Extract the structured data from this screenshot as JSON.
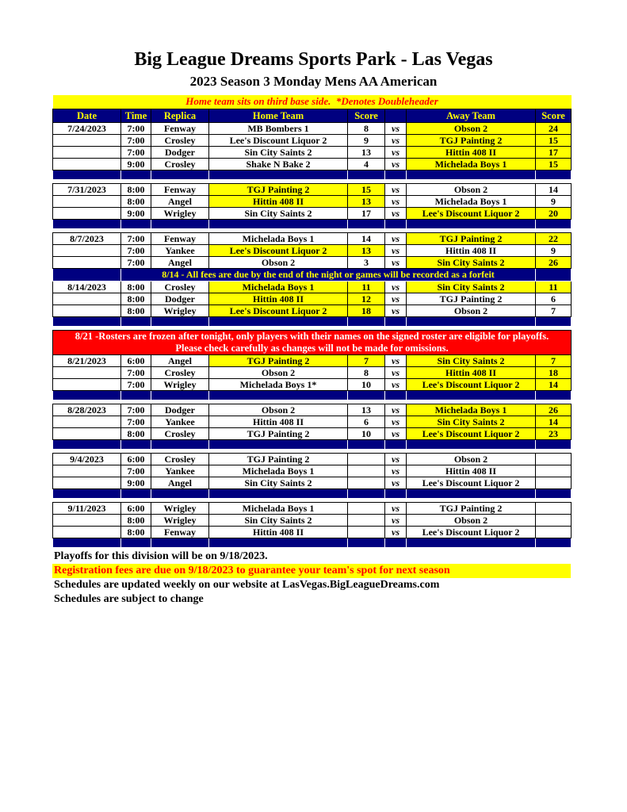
{
  "page": {
    "title": "Big League Dreams Sports Park - Las Vegas",
    "subtitle": "2023 Season 3 Monday Mens AA American"
  },
  "banner": {
    "text": "Home team sits on third base side.  *Denotes Doubleheader"
  },
  "colors": {
    "navy": "#000080",
    "yellow": "#FFFF00",
    "red": "#FF0000",
    "white": "#FFFFFF",
    "black": "#000000"
  },
  "schedule": {
    "headers": {
      "date": "Date",
      "time": "Time",
      "replica": "Replica",
      "home": "Home Team",
      "score": "Score",
      "away": "Away Team",
      "score2": "Score"
    },
    "vs_label": "vs",
    "notices": {
      "fees": "8/14 - All fees are due by the end of the night or games will be recorded as a forfeit",
      "rosters_line1": "8/21 -Rosters are frozen after tonight, only players with their names on the signed roster are eligible for playoffs.",
      "rosters_line2": "Please check carefully as changes will not be made for omissions."
    },
    "groups": [
      {
        "date": "7/24/2023",
        "notice": "none",
        "games": [
          {
            "time": "7:00",
            "replica": "Fenway",
            "home": "MB Bombers 1",
            "home_score": "8",
            "away": "Obson 2",
            "away_score": "24",
            "highlight": "away"
          },
          {
            "time": "7:00",
            "replica": "Crosley",
            "home": "Lee's Discount Liquor 2",
            "home_score": "9",
            "away": "TGJ Painting 2",
            "away_score": "15",
            "highlight": "away"
          },
          {
            "time": "7:00",
            "replica": "Dodger",
            "home": "Sin City Saints 2",
            "home_score": "13",
            "away": "Hittin 408 II",
            "away_score": "17",
            "highlight": "away"
          },
          {
            "time": "9:00",
            "replica": "Crosley",
            "home": "Shake N Bake 2",
            "home_score": "4",
            "away": "Michelada Boys 1",
            "away_score": "15",
            "highlight": "away"
          }
        ]
      },
      {
        "date": "7/31/2023",
        "notice": "none",
        "games": [
          {
            "time": "8:00",
            "replica": "Fenway",
            "home": "TGJ Painting 2",
            "home_score": "15",
            "away": "Obson 2",
            "away_score": "14",
            "highlight": "home"
          },
          {
            "time": "8:00",
            "replica": "Angel",
            "home": "Hittin 408 II",
            "home_score": "13",
            "away": "Michelada Boys 1",
            "away_score": "9",
            "highlight": "home"
          },
          {
            "time": "9:00",
            "replica": "Wrigley",
            "home": "Sin City Saints 2",
            "home_score": "17",
            "away": "Lee's Discount Liquor 2",
            "away_score": "20",
            "highlight": "away"
          }
        ]
      },
      {
        "date": "8/7/2023",
        "notice": "none",
        "games": [
          {
            "time": "7:00",
            "replica": "Fenway",
            "home": "Michelada Boys 1",
            "home_score": "14",
            "away": "TGJ Painting 2",
            "away_score": "22",
            "highlight": "away"
          },
          {
            "time": "7:00",
            "replica": "Yankee",
            "home": "Lee's Discount Liquor 2",
            "home_score": "13",
            "away": "Hittin 408 II",
            "away_score": "9",
            "highlight": "home"
          },
          {
            "time": "7:00",
            "replica": "Angel",
            "home": "Obson 2",
            "home_score": "3",
            "away": "Sin City Saints 2",
            "away_score": "26",
            "highlight": "away"
          }
        ]
      },
      {
        "date": "8/14/2023",
        "notice": "fees",
        "games": [
          {
            "time": "8:00",
            "replica": "Crosley",
            "home": "Michelada Boys 1",
            "home_score": "11",
            "away": "Sin City Saints 2",
            "away_score": "11",
            "highlight": "both"
          },
          {
            "time": "8:00",
            "replica": "Dodger",
            "home": "Hittin 408 II",
            "home_score": "12",
            "away": "TGJ Painting 2",
            "away_score": "6",
            "highlight": "home"
          },
          {
            "time": "8:00",
            "replica": "Wrigley",
            "home": "Lee's Discount Liquor 2",
            "home_score": "18",
            "away": "Obson 2",
            "away_score": "7",
            "highlight": "home"
          }
        ]
      },
      {
        "date": "8/21/2023",
        "notice": "rosters",
        "games": [
          {
            "time": "6:00",
            "replica": "Angel",
            "home": "TGJ Painting 2",
            "home_score": "7",
            "away": "Sin City Saints 2",
            "away_score": "7",
            "highlight": "both"
          },
          {
            "time": "7:00",
            "replica": "Crosley",
            "home": "Obson 2",
            "home_score": "8",
            "away": "Hittin 408 II",
            "away_score": "18",
            "highlight": "away"
          },
          {
            "time": "7:00",
            "replica": "Wrigley",
            "home": "Michelada Boys 1*",
            "home_score": "10",
            "away": "Lee's Discount Liquor 2",
            "away_score": "14",
            "highlight": "away"
          }
        ]
      },
      {
        "date": "8/28/2023",
        "notice": "none",
        "games": [
          {
            "time": "7:00",
            "replica": "Dodger",
            "home": "Obson 2",
            "home_score": "13",
            "away": "Michelada Boys 1",
            "away_score": "26",
            "highlight": "away"
          },
          {
            "time": "7:00",
            "replica": "Yankee",
            "home": "Hittin 408 II",
            "home_score": "6",
            "away": "Sin City Saints 2",
            "away_score": "14",
            "highlight": "away"
          },
          {
            "time": "8:00",
            "replica": "Crosley",
            "home": "TGJ Painting 2",
            "home_score": "10",
            "away": "Lee's Discount Liquor 2",
            "away_score": "23",
            "highlight": "away"
          }
        ]
      },
      {
        "date": "9/4/2023",
        "notice": "none",
        "games": [
          {
            "time": "6:00",
            "replica": "Crosley",
            "home": "TGJ Painting 2",
            "home_score": "",
            "away": "Obson 2",
            "away_score": "",
            "highlight": "none"
          },
          {
            "time": "7:00",
            "replica": "Yankee",
            "home": "Michelada Boys 1",
            "home_score": "",
            "away": "Hittin 408 II",
            "away_score": "",
            "highlight": "none"
          },
          {
            "time": "9:00",
            "replica": "Angel",
            "home": "Sin City Saints 2",
            "home_score": "",
            "away": "Lee's Discount Liquor 2",
            "away_score": "",
            "highlight": "none"
          }
        ]
      },
      {
        "date": "9/11/2023",
        "notice": "none",
        "games": [
          {
            "time": "6:00",
            "replica": "Wrigley",
            "home": "Michelada Boys 1",
            "home_score": "",
            "away": "TGJ Painting 2",
            "away_score": "",
            "highlight": "none"
          },
          {
            "time": "8:00",
            "replica": "Wrigley",
            "home": "Sin City Saints 2",
            "home_score": "",
            "away": "Obson 2",
            "away_score": "",
            "highlight": "none"
          },
          {
            "time": "8:00",
            "replica": "Fenway",
            "home": "Hittin 408 II",
            "home_score": "",
            "away": "Lee's Discount Liquor 2",
            "away_score": "",
            "highlight": "none"
          }
        ]
      }
    ]
  },
  "footer": {
    "playoffs": "Playoffs for this division will be on 9/18/2023.",
    "registration": "Registration fees are due on 9/18/2023 to guarantee your team's spot for next season",
    "website": "Schedules are updated weekly on our website at LasVegas.BigLeagueDreams.com",
    "subject_to_change": "Schedules are subject to change"
  }
}
